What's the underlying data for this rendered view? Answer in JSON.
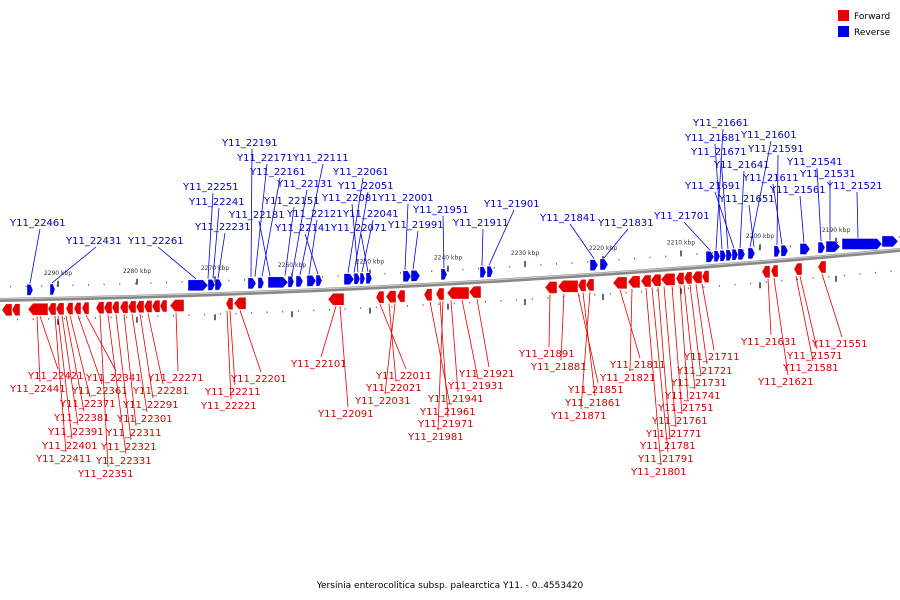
{
  "legend": [
    {
      "label": "Forward",
      "color": "#e60000"
    },
    {
      "label": "Reverse",
      "color": "#0000e6"
    }
  ],
  "caption": "Yersinia enterocolitica subsp. palearctica Y11. - 0..4553420",
  "ticks": [
    "2290 kbp",
    "2280 kbp",
    "2270 kbp",
    "2260 kbp",
    "2250 kbp",
    "2240 kbp",
    "2230 kbp",
    "2220 kbp",
    "2210 kbp",
    "2200 kbp",
    "2190 kbp"
  ],
  "forward_genes": [
    "Y11_22421",
    "Y11_22441",
    "Y11_22371",
    "Y11_22361",
    "Y11_22341",
    "Y11_22381",
    "Y11_22391",
    "Y11_22401",
    "Y11_22411",
    "Y11_22351",
    "Y11_22331",
    "Y11_22321",
    "Y11_22311",
    "Y11_22301",
    "Y11_22291",
    "Y11_22281",
    "Y11_22271",
    "Y11_22211",
    "Y11_22221",
    "Y11_22201",
    "Y11_22101",
    "Y11_22091",
    "Y11_22011",
    "Y11_22021",
    "Y11_22031",
    "Y11_21961",
    "Y11_21971",
    "Y11_21981",
    "Y11_21941",
    "Y11_21931",
    "Y11_21921",
    "Y11_21891",
    "Y11_21881",
    "Y11_21851",
    "Y11_21861",
    "Y11_21871",
    "Y11_21811",
    "Y11_21821",
    "Y11_21711",
    "Y11_21721",
    "Y11_21731",
    "Y11_21741",
    "Y11_21751",
    "Y11_21761",
    "Y11_21771",
    "Y11_21781",
    "Y11_21791",
    "Y11_21801",
    "Y11_21631",
    "Y11_21551",
    "Y11_21571",
    "Y11_21581",
    "Y11_21621"
  ],
  "reverse_genes": [
    "Y11_22461",
    "Y11_22431",
    "Y11_22261",
    "Y11_22251",
    "Y11_22241",
    "Y11_22231",
    "Y11_22191",
    "Y11_22171",
    "Y11_22161",
    "Y11_22181",
    "Y11_22111",
    "Y11_22131",
    "Y11_22151",
    "Y11_22121",
    "Y11_22141",
    "Y11_22061",
    "Y11_22051",
    "Y11_22081",
    "Y11_22041",
    "Y11_22071",
    "Y11_22001",
    "Y11_21991",
    "Y11_21951",
    "Y11_21911",
    "Y11_21901",
    "Y11_21841",
    "Y11_21831",
    "Y11_21701",
    "Y11_21661",
    "Y11_21681",
    "Y11_21671",
    "Y11_21691",
    "Y11_21641",
    "Y11_21601",
    "Y11_21591",
    "Y11_21611",
    "Y11_21651",
    "Y11_21561",
    "Y11_21541",
    "Y11_21531",
    "Y11_21521"
  ]
}
